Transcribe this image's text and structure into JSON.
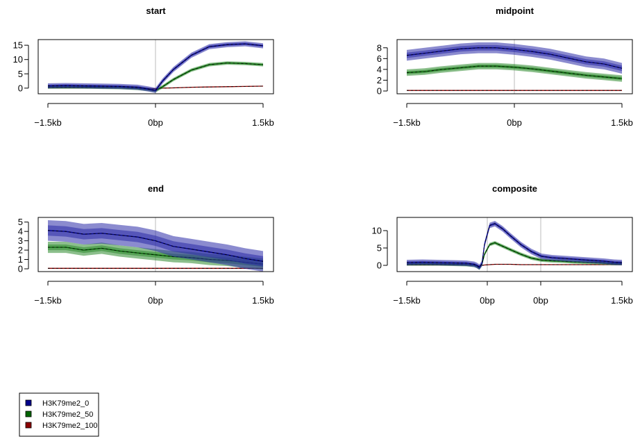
{
  "chart_data": [
    {
      "type": "line",
      "title": "start",
      "xlabel": "",
      "ylabel": "",
      "xticks": [
        "−1.5kb",
        "0bp",
        "1.5kb"
      ],
      "x": [
        -1.5,
        -1.25,
        -1.0,
        -0.75,
        -0.5,
        -0.25,
        -0.1,
        0,
        0.1,
        0.25,
        0.5,
        0.75,
        1.0,
        1.25,
        1.5
      ],
      "xlim": [
        -1.5,
        1.5
      ],
      "ylim": [
        -1,
        16
      ],
      "yticks": [
        0,
        5,
        10,
        15
      ],
      "series": [
        {
          "name": "H3K79me2_0",
          "values": [
            0.8,
            0.9,
            0.8,
            0.7,
            0.6,
            0.3,
            -0.3,
            -0.8,
            2.5,
            6.5,
            11.5,
            14.5,
            15.2,
            15.5,
            14.8
          ],
          "band": 0.9
        },
        {
          "name": "H3K79me2_50",
          "values": [
            0.4,
            0.4,
            0.4,
            0.3,
            0.2,
            -0.1,
            -0.5,
            -0.9,
            0.5,
            3.0,
            6.3,
            8.2,
            8.8,
            8.6,
            8.2
          ],
          "band": 0.6
        },
        {
          "name": "H3K79me2_100",
          "values": [
            0.1,
            0.1,
            0.1,
            0.1,
            0.1,
            0.0,
            -0.1,
            -0.2,
            0.0,
            0.1,
            0.3,
            0.4,
            0.5,
            0.6,
            0.7
          ],
          "band": 0.1
        }
      ]
    },
    {
      "type": "line",
      "title": "midpoint",
      "xlabel": "",
      "ylabel": "",
      "xticks": [
        "−1.5kb",
        "0bp",
        "1.5kb"
      ],
      "x": [
        -1.5,
        -1.25,
        -1.0,
        -0.75,
        -0.5,
        -0.25,
        0,
        0.25,
        0.5,
        0.75,
        1.0,
        1.25,
        1.5
      ],
      "xlim": [
        -1.5,
        1.5
      ],
      "ylim": [
        0,
        9
      ],
      "yticks": [
        0,
        2,
        4,
        6,
        8
      ],
      "series": [
        {
          "name": "H3K79me2_0",
          "values": [
            6.6,
            7.0,
            7.4,
            7.8,
            8.0,
            8.0,
            7.7,
            7.3,
            6.8,
            6.1,
            5.4,
            5.0,
            4.2
          ],
          "band": 1.0
        },
        {
          "name": "H3K79me2_50",
          "values": [
            3.4,
            3.6,
            4.0,
            4.3,
            4.6,
            4.6,
            4.4,
            4.1,
            3.7,
            3.3,
            2.9,
            2.6,
            2.3
          ],
          "band": 0.6
        },
        {
          "name": "H3K79me2_100",
          "values": [
            0.1,
            0.1,
            0.1,
            0.1,
            0.1,
            0.1,
            0.1,
            0.1,
            0.1,
            0.1,
            0.1,
            0.1,
            0.1
          ],
          "band": 0.05
        }
      ]
    },
    {
      "type": "line",
      "title": "end",
      "xlabel": "",
      "ylabel": "",
      "xticks": [
        "−1.5kb",
        "0bp",
        "1.5kb"
      ],
      "x": [
        -1.5,
        -1.25,
        -1.0,
        -0.75,
        -0.5,
        -0.25,
        0,
        0.25,
        0.5,
        0.75,
        1.0,
        1.25,
        1.5
      ],
      "xlim": [
        -1.5,
        1.5
      ],
      "ylim": [
        0,
        5.2
      ],
      "yticks": [
        0,
        1,
        2,
        3,
        4,
        5
      ],
      "series": [
        {
          "name": "H3K79me2_0",
          "values": [
            4.1,
            4.0,
            3.7,
            3.8,
            3.6,
            3.4,
            3.0,
            2.4,
            2.1,
            1.8,
            1.5,
            1.1,
            0.8
          ],
          "band": 1.1
        },
        {
          "name": "H3K79me2_50",
          "values": [
            2.3,
            2.3,
            2.0,
            2.2,
            1.9,
            1.7,
            1.5,
            1.3,
            1.2,
            1.0,
            0.9,
            0.7,
            0.5
          ],
          "band": 0.6
        },
        {
          "name": "H3K79me2_100",
          "values": [
            0.05,
            0.05,
            0.05,
            0.05,
            0.05,
            0.05,
            0.05,
            0.05,
            0.05,
            0.05,
            0.05,
            0.05,
            0.05
          ],
          "band": 0.05
        }
      ]
    },
    {
      "type": "line",
      "title": "composite",
      "xlabel": "",
      "ylabel": "",
      "xticks": [
        "−1.5kb",
        "0bp",
        "0bp",
        "1.5kb"
      ],
      "x": [
        -1.5,
        -1.2,
        -0.9,
        -0.6,
        -0.35,
        -0.2,
        -0.15,
        -0.1,
        -0.05,
        0,
        0.1,
        0.2,
        0.35,
        0.5,
        0.7,
        0.9,
        1.1,
        1.3,
        1.5,
        1.7,
        1.9,
        2.1,
        2.3,
        2.5,
        2.65
      ],
      "xlim": [
        -1.5,
        2.65
      ],
      "ylim": [
        -1,
        13
      ],
      "yticks": [
        0,
        5,
        10
      ],
      "series": [
        {
          "name": "H3K79me2_0",
          "values": [
            0.8,
            0.9,
            0.8,
            0.7,
            0.6,
            0.3,
            0.0,
            -0.5,
            0.5,
            6.0,
            11.5,
            12.0,
            10.5,
            8.5,
            6.0,
            4.0,
            2.6,
            2.2,
            2.0,
            1.8,
            1.6,
            1.4,
            1.2,
            0.9,
            0.8
          ],
          "band": 0.8
        },
        {
          "name": "H3K79me2_50",
          "values": [
            0.4,
            0.4,
            0.4,
            0.3,
            0.2,
            0.0,
            -0.3,
            -0.8,
            0.3,
            3.2,
            6.0,
            6.5,
            5.5,
            4.5,
            3.2,
            2.1,
            1.5,
            1.3,
            1.2,
            1.0,
            0.9,
            0.8,
            0.7,
            0.5,
            0.5
          ],
          "band": 0.5
        },
        {
          "name": "H3K79me2_100",
          "values": [
            0.1,
            0.1,
            0.1,
            0.1,
            0.1,
            0.0,
            -0.1,
            -0.2,
            0.0,
            0.1,
            0.2,
            0.3,
            0.3,
            0.3,
            0.2,
            0.2,
            0.2,
            0.2,
            0.2,
            0.2,
            0.2,
            0.2,
            0.2,
            0.2,
            0.2
          ],
          "band": 0.1
        }
      ]
    }
  ],
  "legend": {
    "placement": "bottom-left",
    "items": [
      {
        "label": "H3K79me2_0",
        "color": "#00008B"
      },
      {
        "label": "H3K79me2_50",
        "color": "#006400"
      },
      {
        "label": "H3K79me2_100",
        "color": "#8B0000"
      }
    ]
  },
  "colors": {
    "line": [
      "#00008B",
      "#006400",
      "#8B0000"
    ],
    "band": [
      "#2C2CA8",
      "#2E8B2E",
      "#C04040"
    ],
    "center_line": "#bbbbbb"
  }
}
